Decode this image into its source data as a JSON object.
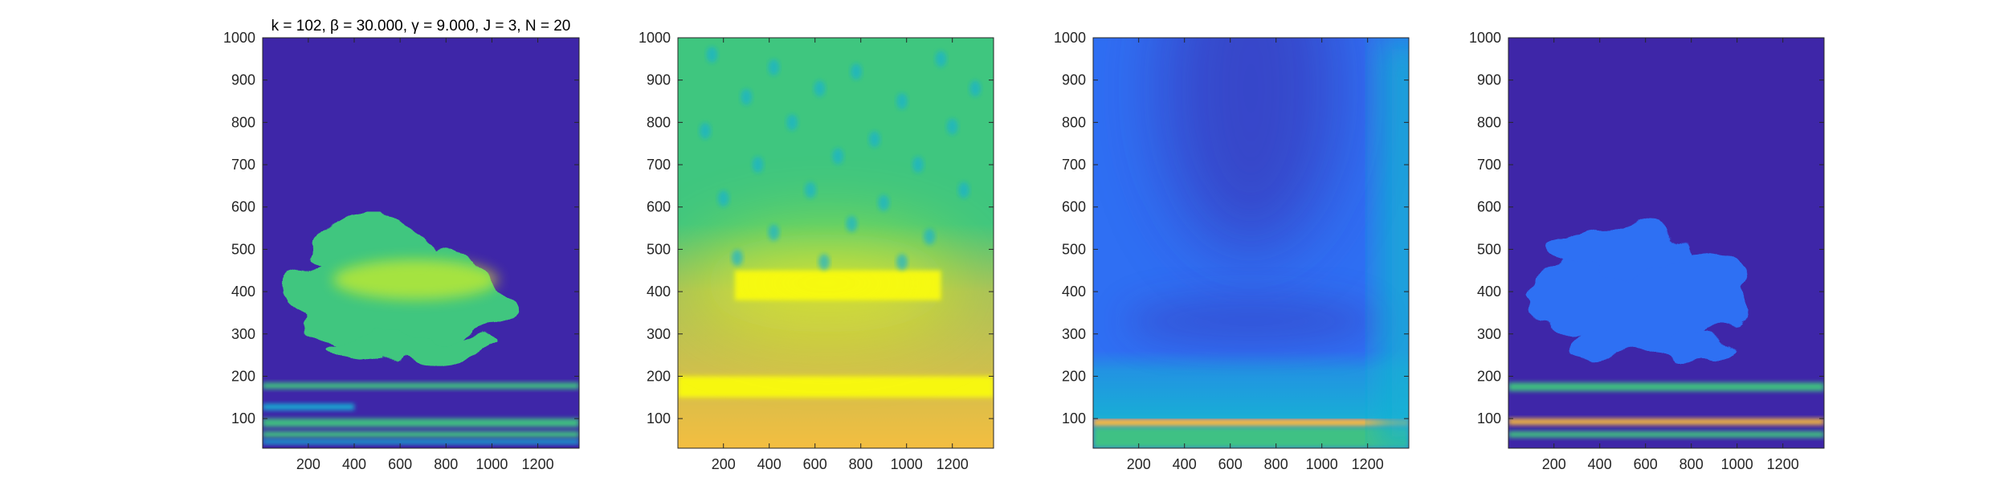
{
  "figure": {
    "title": "k = 102, β = 30.000, γ = 9.000, J = 3, N = 20"
  },
  "colors": {
    "parula_dark": "#3e26a8",
    "parula_blue": "#2f6ff3",
    "parula_cyan": "#17b1d4",
    "parula_green": "#3fc67f",
    "parula_yellow": "#f9fb0e",
    "parula_orange": "#fdbd3d",
    "axis": "#262626"
  },
  "chart_data": [
    {
      "type": "heatmap",
      "title": "k = 102, β = 30.000, γ = 9.000, J = 3, N = 20",
      "xlim": [
        1,
        1380
      ],
      "ylim": [
        30,
        1000
      ],
      "xticks": [
        200,
        400,
        600,
        800,
        1000,
        1200
      ],
      "yticks": [
        100,
        200,
        300,
        400,
        500,
        600,
        700,
        800,
        900,
        1000
      ],
      "background": "parula_dark",
      "features": [
        {
          "kind": "band",
          "y": [
            170,
            185
          ],
          "x": [
            1,
            1380
          ],
          "color": "parula_green"
        },
        {
          "kind": "band",
          "y": [
            120,
            135
          ],
          "x": [
            1,
            400
          ],
          "color": "parula_cyan"
        },
        {
          "kind": "band",
          "y": [
            80,
            100
          ],
          "x": [
            1,
            1380
          ],
          "color": "parula_green"
        },
        {
          "kind": "band",
          "y": [
            55,
            70
          ],
          "x": [
            1,
            1380
          ],
          "color": "parula_green"
        },
        {
          "kind": "band",
          "y": [
            40,
            50
          ],
          "x": [
            1,
            1380
          ],
          "color": "parula_cyan"
        },
        {
          "kind": "blob",
          "x": [
            80,
            1080
          ],
          "y": [
            230,
            570
          ],
          "color": "parula_green"
        }
      ]
    },
    {
      "type": "heatmap",
      "title": "",
      "xlim": [
        1,
        1380
      ],
      "ylim": [
        30,
        1000
      ],
      "xticks": [
        200,
        400,
        600,
        800,
        1000,
        1200
      ],
      "yticks": [
        100,
        200,
        300,
        400,
        500,
        600,
        700,
        800,
        900,
        1000
      ],
      "background": "parula_green",
      "features": [
        {
          "kind": "gradient",
          "y": [
            30,
            560
          ],
          "color": "parula_orange"
        },
        {
          "kind": "band",
          "y": [
            150,
            200
          ],
          "x": [
            1,
            1380
          ],
          "color": "parula_yellow"
        },
        {
          "kind": "band",
          "y": [
            380,
            450
          ],
          "x": [
            250,
            1150
          ],
          "color": "parula_yellow"
        }
      ]
    },
    {
      "type": "heatmap",
      "title": "",
      "xlim": [
        1,
        1380
      ],
      "ylim": [
        30,
        1000
      ],
      "xticks": [
        200,
        400,
        600,
        800,
        1000,
        1200
      ],
      "yticks": [
        100,
        200,
        300,
        400,
        500,
        600,
        700,
        800,
        900,
        1000
      ],
      "background": "parula_blue",
      "features": [
        {
          "kind": "band",
          "y": [
            80,
            100
          ],
          "x": [
            1,
            1380
          ],
          "color": "parula_orange"
        },
        {
          "kind": "band",
          "y": [
            30,
            80
          ],
          "x": [
            1,
            1380
          ],
          "color": "parula_green"
        },
        {
          "kind": "gradient",
          "y": [
            100,
            260
          ],
          "color": "parula_cyan"
        },
        {
          "kind": "edge",
          "x": [
            1250,
            1380
          ],
          "color": "parula_cyan"
        }
      ]
    },
    {
      "type": "heatmap",
      "title": "",
      "xlim": [
        1,
        1380
      ],
      "ylim": [
        30,
        1000
      ],
      "xticks": [
        200,
        400,
        600,
        800,
        1000,
        1200
      ],
      "yticks": [
        100,
        200,
        300,
        400,
        500,
        600,
        700,
        800,
        900,
        1000
      ],
      "background": "parula_dark",
      "features": [
        {
          "kind": "band",
          "y": [
            165,
            185
          ],
          "x": [
            1,
            1380
          ],
          "color": "parula_green"
        },
        {
          "kind": "band",
          "y": [
            85,
            100
          ],
          "x": [
            1,
            1380
          ],
          "color": "parula_orange"
        },
        {
          "kind": "band",
          "y": [
            55,
            70
          ],
          "x": [
            1,
            1380
          ],
          "color": "parula_green"
        },
        {
          "kind": "blob",
          "x": [
            80,
            1080
          ],
          "y": [
            230,
            570
          ],
          "color": "parula_blue"
        }
      ]
    }
  ]
}
